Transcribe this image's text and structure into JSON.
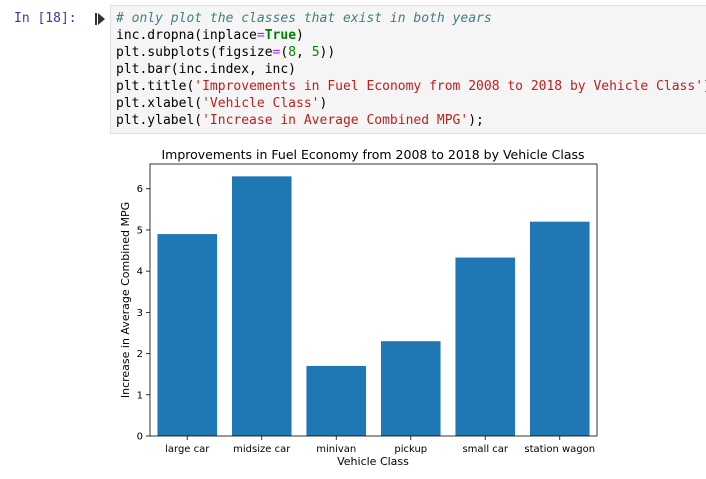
{
  "cell": {
    "prompt": "In [18]:",
    "code_lines": [
      [
        {
          "t": "# only plot the classes that exist in both years",
          "c": "comment"
        }
      ],
      [
        {
          "t": "inc.dropna(inplace",
          "c": ""
        },
        {
          "t": "=",
          "c": "op"
        },
        {
          "t": "True",
          "c": "kw"
        },
        {
          "t": ")",
          "c": ""
        }
      ],
      [
        {
          "t": "plt.subplots(figsize",
          "c": ""
        },
        {
          "t": "=",
          "c": "op"
        },
        {
          "t": "(",
          "c": ""
        },
        {
          "t": "8",
          "c": "num"
        },
        {
          "t": ", ",
          "c": ""
        },
        {
          "t": "5",
          "c": "num"
        },
        {
          "t": "))",
          "c": ""
        }
      ],
      [
        {
          "t": "plt.bar(inc.index, inc)",
          "c": ""
        }
      ],
      [
        {
          "t": "plt.title(",
          "c": ""
        },
        {
          "t": "'Improvements in Fuel Economy from 2008 to 2018 by Vehicle Class'",
          "c": "str"
        },
        {
          "t": ")",
          "c": ""
        }
      ],
      [
        {
          "t": "plt.xlabel(",
          "c": ""
        },
        {
          "t": "'Vehicle Class'",
          "c": "str"
        },
        {
          "t": ")",
          "c": ""
        }
      ],
      [
        {
          "t": "plt.ylabel(",
          "c": ""
        },
        {
          "t": "'Increase in Average Combined MPG'",
          "c": "str"
        },
        {
          "t": ");",
          "c": ""
        }
      ]
    ]
  },
  "chart_data": {
    "type": "bar",
    "title": "Improvements in Fuel Economy from 2008 to 2018 by Vehicle Class",
    "xlabel": "Vehicle Class",
    "ylabel": "Increase in Average Combined MPG",
    "categories": [
      "large car",
      "midsize car",
      "minivan",
      "pickup",
      "small car",
      "station wagon"
    ],
    "values": [
      4.9,
      6.3,
      1.7,
      2.3,
      4.33,
      5.2
    ],
    "yticks": [
      0,
      1,
      2,
      3,
      4,
      5,
      6
    ],
    "ylim": [
      0,
      6.6
    ],
    "grid": false,
    "bar_color": "#1f77b4"
  }
}
